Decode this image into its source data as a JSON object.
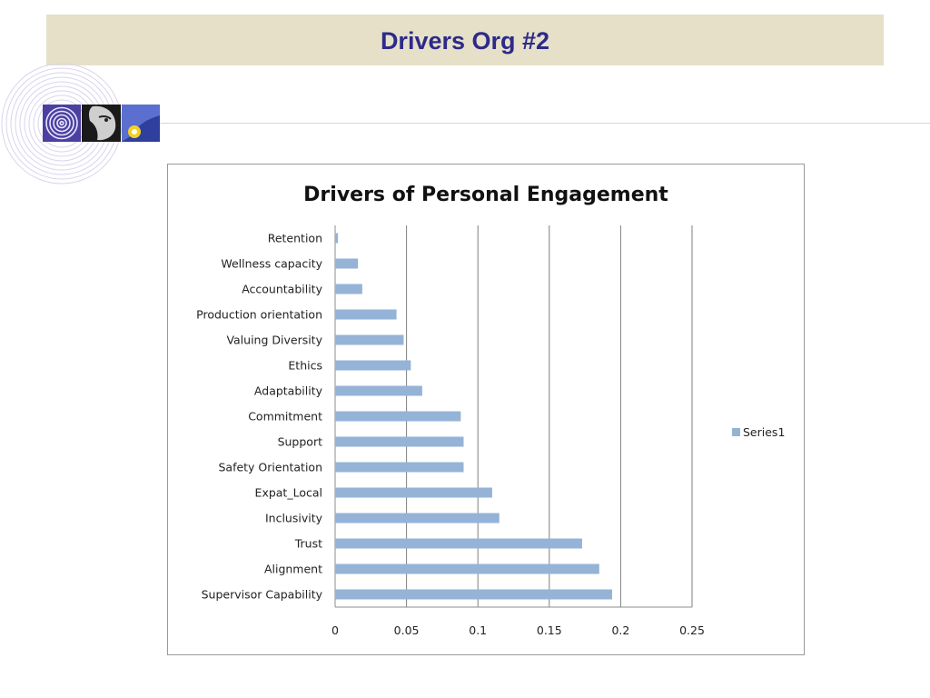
{
  "slide": {
    "title": "Drivers Org #2"
  },
  "colors": {
    "header_band": "#e6e0c8",
    "title_text": "#2d2a8a",
    "bar": "#95b3d7",
    "gridline": "#7f7f7f"
  },
  "icons": [
    "concentric-circles-icon",
    "face-photo-icon",
    "flower-photo-icon"
  ],
  "chart_data": {
    "type": "bar",
    "orientation": "horizontal",
    "title": "Drivers of Personal Engagement",
    "xlabel": "",
    "ylabel": "",
    "categories": [
      "Retention",
      "Wellness capacity",
      "Accountability",
      "Production orientation",
      "Valuing Diversity",
      "Ethics",
      "Adaptability",
      "Commitment",
      "Support",
      "Safety Orientation",
      "Expat_Local",
      "Inclusivity",
      "Trust",
      "Alignment",
      "Supervisor Capability"
    ],
    "series": [
      {
        "name": "Series1",
        "values": [
          0.002,
          0.016,
          0.019,
          0.043,
          0.048,
          0.053,
          0.061,
          0.088,
          0.09,
          0.09,
          0.11,
          0.115,
          0.173,
          0.185,
          0.194
        ]
      }
    ],
    "xlim": [
      0,
      0.25
    ],
    "xticks": [
      "0",
      "0.05",
      "0.1",
      "0.15",
      "0.2",
      "0.25"
    ],
    "grid": "vertical major gridlines",
    "legend": "right"
  }
}
